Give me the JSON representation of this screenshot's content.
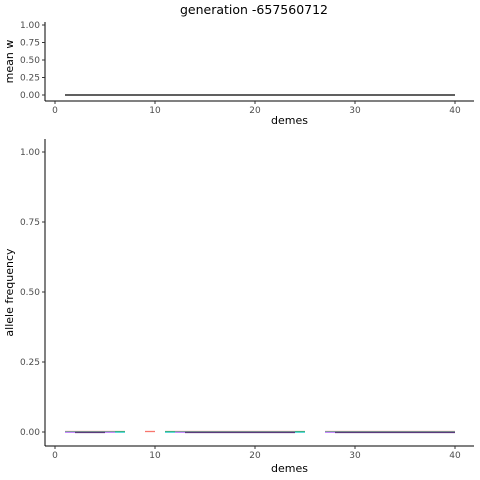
{
  "title": "generation -657560712",
  "chart_data": [
    {
      "type": "line",
      "xlabel": "demes",
      "ylabel": "mean w",
      "xlim": [
        1,
        40
      ],
      "ylim": [
        0,
        1
      ],
      "x_ticks": [
        "0",
        "10",
        "20",
        "30",
        "40"
      ],
      "y_ticks": [
        "0.00",
        "0.25",
        "0.50",
        "0.75",
        "1.00"
      ],
      "grid": false,
      "series": [
        {
          "color": "#000000",
          "x": [
            1,
            40
          ],
          "values": [
            0,
            0
          ]
        }
      ]
    },
    {
      "type": "line",
      "xlabel": "demes",
      "ylabel": "allele frequency",
      "xlim": [
        1,
        40
      ],
      "ylim": [
        0,
        1
      ],
      "x_ticks": [
        "0",
        "10",
        "20",
        "30",
        "40"
      ],
      "y_ticks": [
        "0.00",
        "0.25",
        "0.50",
        "0.75",
        "1.00"
      ],
      "grid": false,
      "series": [
        {
          "color": "#f8766d",
          "segments": [
            [
              1,
              7
            ],
            [
              9,
              10
            ],
            [
              11,
              25
            ],
            [
              27,
              40
            ]
          ],
          "value": 0
        },
        {
          "color": "#7cae00",
          "segments": [
            [
              1,
              7
            ],
            [
              11,
              25
            ],
            [
              27,
              40
            ]
          ],
          "value": 0
        },
        {
          "color": "#00bfc4",
          "segments": [
            [
              1,
              7
            ],
            [
              11,
              25
            ],
            [
              27,
              40
            ]
          ],
          "value": 0
        },
        {
          "color": "#c77cff",
          "segments": [
            [
              1,
              6
            ],
            [
              12,
              24
            ],
            [
              27,
              40
            ]
          ],
          "value": 0
        },
        {
          "color": "#5b3a7e",
          "segments": [
            [
              2,
              5
            ],
            [
              13,
              24
            ],
            [
              28,
              40
            ]
          ],
          "value": 0
        }
      ]
    }
  ]
}
